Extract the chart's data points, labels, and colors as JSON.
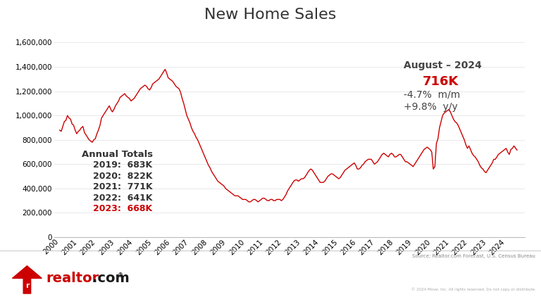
{
  "title": "New Home Sales",
  "title_fontsize": 16,
  "line_color": "#CC0000",
  "background_color": "#FFFFFF",
  "ylim": [
    0,
    1700000
  ],
  "yticks": [
    0,
    200000,
    400000,
    600000,
    800000,
    1000000,
    1200000,
    1400000,
    1600000
  ],
  "annual_totals_label": "Annual Totals",
  "annual_totals": [
    {
      "year": "2019",
      "value": "683K",
      "color": "#333333"
    },
    {
      "year": "2020",
      "value": "822K",
      "color": "#333333"
    },
    {
      "year": "2021",
      "value": "771K",
      "color": "#333333"
    },
    {
      "year": "2022",
      "value": "641K",
      "color": "#333333"
    },
    {
      "year": "2023",
      "value": "668K",
      "color": "#CC0000"
    }
  ],
  "august_label": "August – 2024",
  "august_value": "716K",
  "august_mom": "-4.7%  m/m",
  "august_yoy": "+9.8%  y/y",
  "source_text": "Source: Realtor.com Forecast, U.S. Census Bureau",
  "copyright_text": "© 2024 Move, Inc. All rights reserved. Do not copy or distribute.",
  "realtor_red": "#CC0000",
  "realtor_black": "#1a1a1a",
  "dates": [
    2000.0,
    2000.083,
    2000.167,
    2000.25,
    2000.333,
    2000.417,
    2000.5,
    2000.583,
    2000.667,
    2000.75,
    2000.833,
    2000.917,
    2001.0,
    2001.083,
    2001.167,
    2001.25,
    2001.333,
    2001.417,
    2001.5,
    2001.583,
    2001.667,
    2001.75,
    2001.833,
    2001.917,
    2002.0,
    2002.083,
    2002.167,
    2002.25,
    2002.333,
    2002.417,
    2002.5,
    2002.583,
    2002.667,
    2002.75,
    2002.833,
    2002.917,
    2003.0,
    2003.083,
    2003.167,
    2003.25,
    2003.333,
    2003.417,
    2003.5,
    2003.583,
    2003.667,
    2003.75,
    2003.833,
    2003.917,
    2004.0,
    2004.083,
    2004.167,
    2004.25,
    2004.333,
    2004.417,
    2004.5,
    2004.583,
    2004.667,
    2004.75,
    2004.833,
    2004.917,
    2005.0,
    2005.083,
    2005.167,
    2005.25,
    2005.333,
    2005.417,
    2005.5,
    2005.583,
    2005.667,
    2005.75,
    2005.833,
    2005.917,
    2006.0,
    2006.083,
    2006.167,
    2006.25,
    2006.333,
    2006.417,
    2006.5,
    2006.583,
    2006.667,
    2006.75,
    2006.833,
    2006.917,
    2007.0,
    2007.083,
    2007.167,
    2007.25,
    2007.333,
    2007.417,
    2007.5,
    2007.583,
    2007.667,
    2007.75,
    2007.833,
    2007.917,
    2008.0,
    2008.083,
    2008.167,
    2008.25,
    2008.333,
    2008.417,
    2008.5,
    2008.583,
    2008.667,
    2008.75,
    2008.833,
    2008.917,
    2009.0,
    2009.083,
    2009.167,
    2009.25,
    2009.333,
    2009.417,
    2009.5,
    2009.583,
    2009.667,
    2009.75,
    2009.833,
    2009.917,
    2010.0,
    2010.083,
    2010.167,
    2010.25,
    2010.333,
    2010.417,
    2010.5,
    2010.583,
    2010.667,
    2010.75,
    2010.833,
    2010.917,
    2011.0,
    2011.083,
    2011.167,
    2011.25,
    2011.333,
    2011.417,
    2011.5,
    2011.583,
    2011.667,
    2011.75,
    2011.833,
    2011.917,
    2012.0,
    2012.083,
    2012.167,
    2012.25,
    2012.333,
    2012.417,
    2012.5,
    2012.583,
    2012.667,
    2012.75,
    2012.833,
    2012.917,
    2013.0,
    2013.083,
    2013.167,
    2013.25,
    2013.333,
    2013.417,
    2013.5,
    2013.583,
    2013.667,
    2013.75,
    2013.833,
    2013.917,
    2014.0,
    2014.083,
    2014.167,
    2014.25,
    2014.333,
    2014.417,
    2014.5,
    2014.583,
    2014.667,
    2014.75,
    2014.833,
    2014.917,
    2015.0,
    2015.083,
    2015.167,
    2015.25,
    2015.333,
    2015.417,
    2015.5,
    2015.583,
    2015.667,
    2015.75,
    2015.833,
    2015.917,
    2016.0,
    2016.083,
    2016.167,
    2016.25,
    2016.333,
    2016.417,
    2016.5,
    2016.583,
    2016.667,
    2016.75,
    2016.833,
    2016.917,
    2017.0,
    2017.083,
    2017.167,
    2017.25,
    2017.333,
    2017.417,
    2017.5,
    2017.583,
    2017.667,
    2017.75,
    2017.833,
    2017.917,
    2018.0,
    2018.083,
    2018.167,
    2018.25,
    2018.333,
    2018.417,
    2018.5,
    2018.583,
    2018.667,
    2018.75,
    2018.833,
    2018.917,
    2019.0,
    2019.083,
    2019.167,
    2019.25,
    2019.333,
    2019.417,
    2019.5,
    2019.583,
    2019.667,
    2019.75,
    2019.833,
    2019.917,
    2020.0,
    2020.083,
    2020.167,
    2020.25,
    2020.333,
    2020.417,
    2020.5,
    2020.583,
    2020.667,
    2020.75,
    2020.833,
    2020.917,
    2021.0,
    2021.083,
    2021.167,
    2021.25,
    2021.333,
    2021.417,
    2021.5,
    2021.583,
    2021.667,
    2021.75,
    2021.833,
    2021.917,
    2022.0,
    2022.083,
    2022.167,
    2022.25,
    2022.333,
    2022.417,
    2022.5,
    2022.583,
    2022.667,
    2022.75,
    2022.833,
    2022.917,
    2023.0,
    2023.083,
    2023.167,
    2023.25,
    2023.333,
    2023.417,
    2023.5,
    2023.583,
    2023.667,
    2023.75,
    2023.833,
    2023.917,
    2024.0,
    2024.083,
    2024.167,
    2024.25,
    2024.333,
    2024.417,
    2024.583
  ],
  "values": [
    880000,
    870000,
    910000,
    950000,
    960000,
    1000000,
    980000,
    970000,
    930000,
    920000,
    880000,
    850000,
    870000,
    880000,
    900000,
    910000,
    860000,
    840000,
    820000,
    800000,
    790000,
    780000,
    800000,
    810000,
    850000,
    880000,
    920000,
    980000,
    1000000,
    1020000,
    1040000,
    1060000,
    1080000,
    1050000,
    1030000,
    1050000,
    1080000,
    1100000,
    1120000,
    1150000,
    1160000,
    1170000,
    1180000,
    1160000,
    1150000,
    1140000,
    1120000,
    1130000,
    1140000,
    1160000,
    1180000,
    1200000,
    1220000,
    1230000,
    1240000,
    1250000,
    1240000,
    1220000,
    1210000,
    1230000,
    1260000,
    1270000,
    1280000,
    1290000,
    1300000,
    1320000,
    1340000,
    1360000,
    1380000,
    1350000,
    1310000,
    1300000,
    1290000,
    1280000,
    1260000,
    1240000,
    1230000,
    1220000,
    1190000,
    1140000,
    1100000,
    1050000,
    1000000,
    970000,
    940000,
    900000,
    870000,
    850000,
    820000,
    800000,
    770000,
    740000,
    710000,
    680000,
    650000,
    620000,
    590000,
    570000,
    540000,
    520000,
    500000,
    480000,
    460000,
    450000,
    440000,
    430000,
    420000,
    400000,
    390000,
    380000,
    370000,
    360000,
    350000,
    340000,
    340000,
    340000,
    330000,
    320000,
    310000,
    310000,
    310000,
    300000,
    290000,
    290000,
    300000,
    310000,
    310000,
    300000,
    290000,
    300000,
    310000,
    320000,
    320000,
    310000,
    300000,
    300000,
    310000,
    310000,
    300000,
    300000,
    310000,
    310000,
    310000,
    300000,
    310000,
    330000,
    350000,
    380000,
    400000,
    420000,
    440000,
    460000,
    470000,
    470000,
    460000,
    470000,
    480000,
    480000,
    490000,
    510000,
    530000,
    550000,
    560000,
    550000,
    530000,
    510000,
    490000,
    470000,
    450000,
    450000,
    450000,
    460000,
    480000,
    500000,
    510000,
    520000,
    520000,
    510000,
    500000,
    490000,
    480000,
    490000,
    510000,
    530000,
    550000,
    560000,
    570000,
    580000,
    590000,
    600000,
    610000,
    590000,
    560000,
    560000,
    570000,
    590000,
    600000,
    620000,
    630000,
    640000,
    640000,
    640000,
    620000,
    600000,
    610000,
    620000,
    640000,
    660000,
    680000,
    690000,
    680000,
    670000,
    660000,
    680000,
    690000,
    680000,
    660000,
    660000,
    670000,
    680000,
    680000,
    660000,
    640000,
    620000,
    620000,
    610000,
    600000,
    590000,
    580000,
    600000,
    620000,
    640000,
    660000,
    680000,
    700000,
    720000,
    730000,
    740000,
    730000,
    720000,
    700000,
    560000,
    580000,
    770000,
    810000,
    900000,
    950000,
    1000000,
    1020000,
    1030000,
    1040000,
    1050000,
    1030000,
    1000000,
    970000,
    950000,
    940000,
    920000,
    890000,
    860000,
    830000,
    800000,
    760000,
    730000,
    750000,
    720000,
    690000,
    670000,
    660000,
    640000,
    620000,
    590000,
    570000,
    560000,
    540000,
    530000,
    550000,
    570000,
    590000,
    610000,
    640000,
    640000,
    660000,
    680000,
    690000,
    700000,
    710000,
    720000,
    730000,
    700000,
    680000,
    720000,
    730000,
    750000,
    716000
  ]
}
